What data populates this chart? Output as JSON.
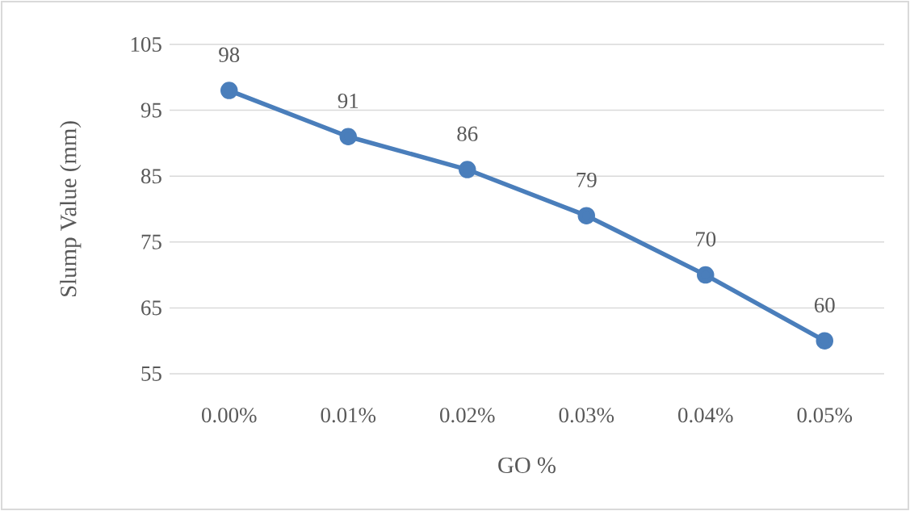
{
  "chart_data": {
    "type": "line",
    "xlabel": "GO %",
    "ylabel": "Slump Value (mm)",
    "categories": [
      "0.00%",
      "0.01%",
      "0.02%",
      "0.03%",
      "0.04%",
      "0.05%"
    ],
    "series": [
      {
        "color": "#4a7ebb",
        "values": [
          98,
          91,
          86,
          79,
          70,
          60
        ]
      }
    ],
    "ylim": [
      55,
      105
    ],
    "yticks": [
      55,
      65,
      75,
      85,
      95,
      105
    ],
    "grid": "y",
    "marker": "circle",
    "line_style": "solid",
    "data_labels": true
  }
}
